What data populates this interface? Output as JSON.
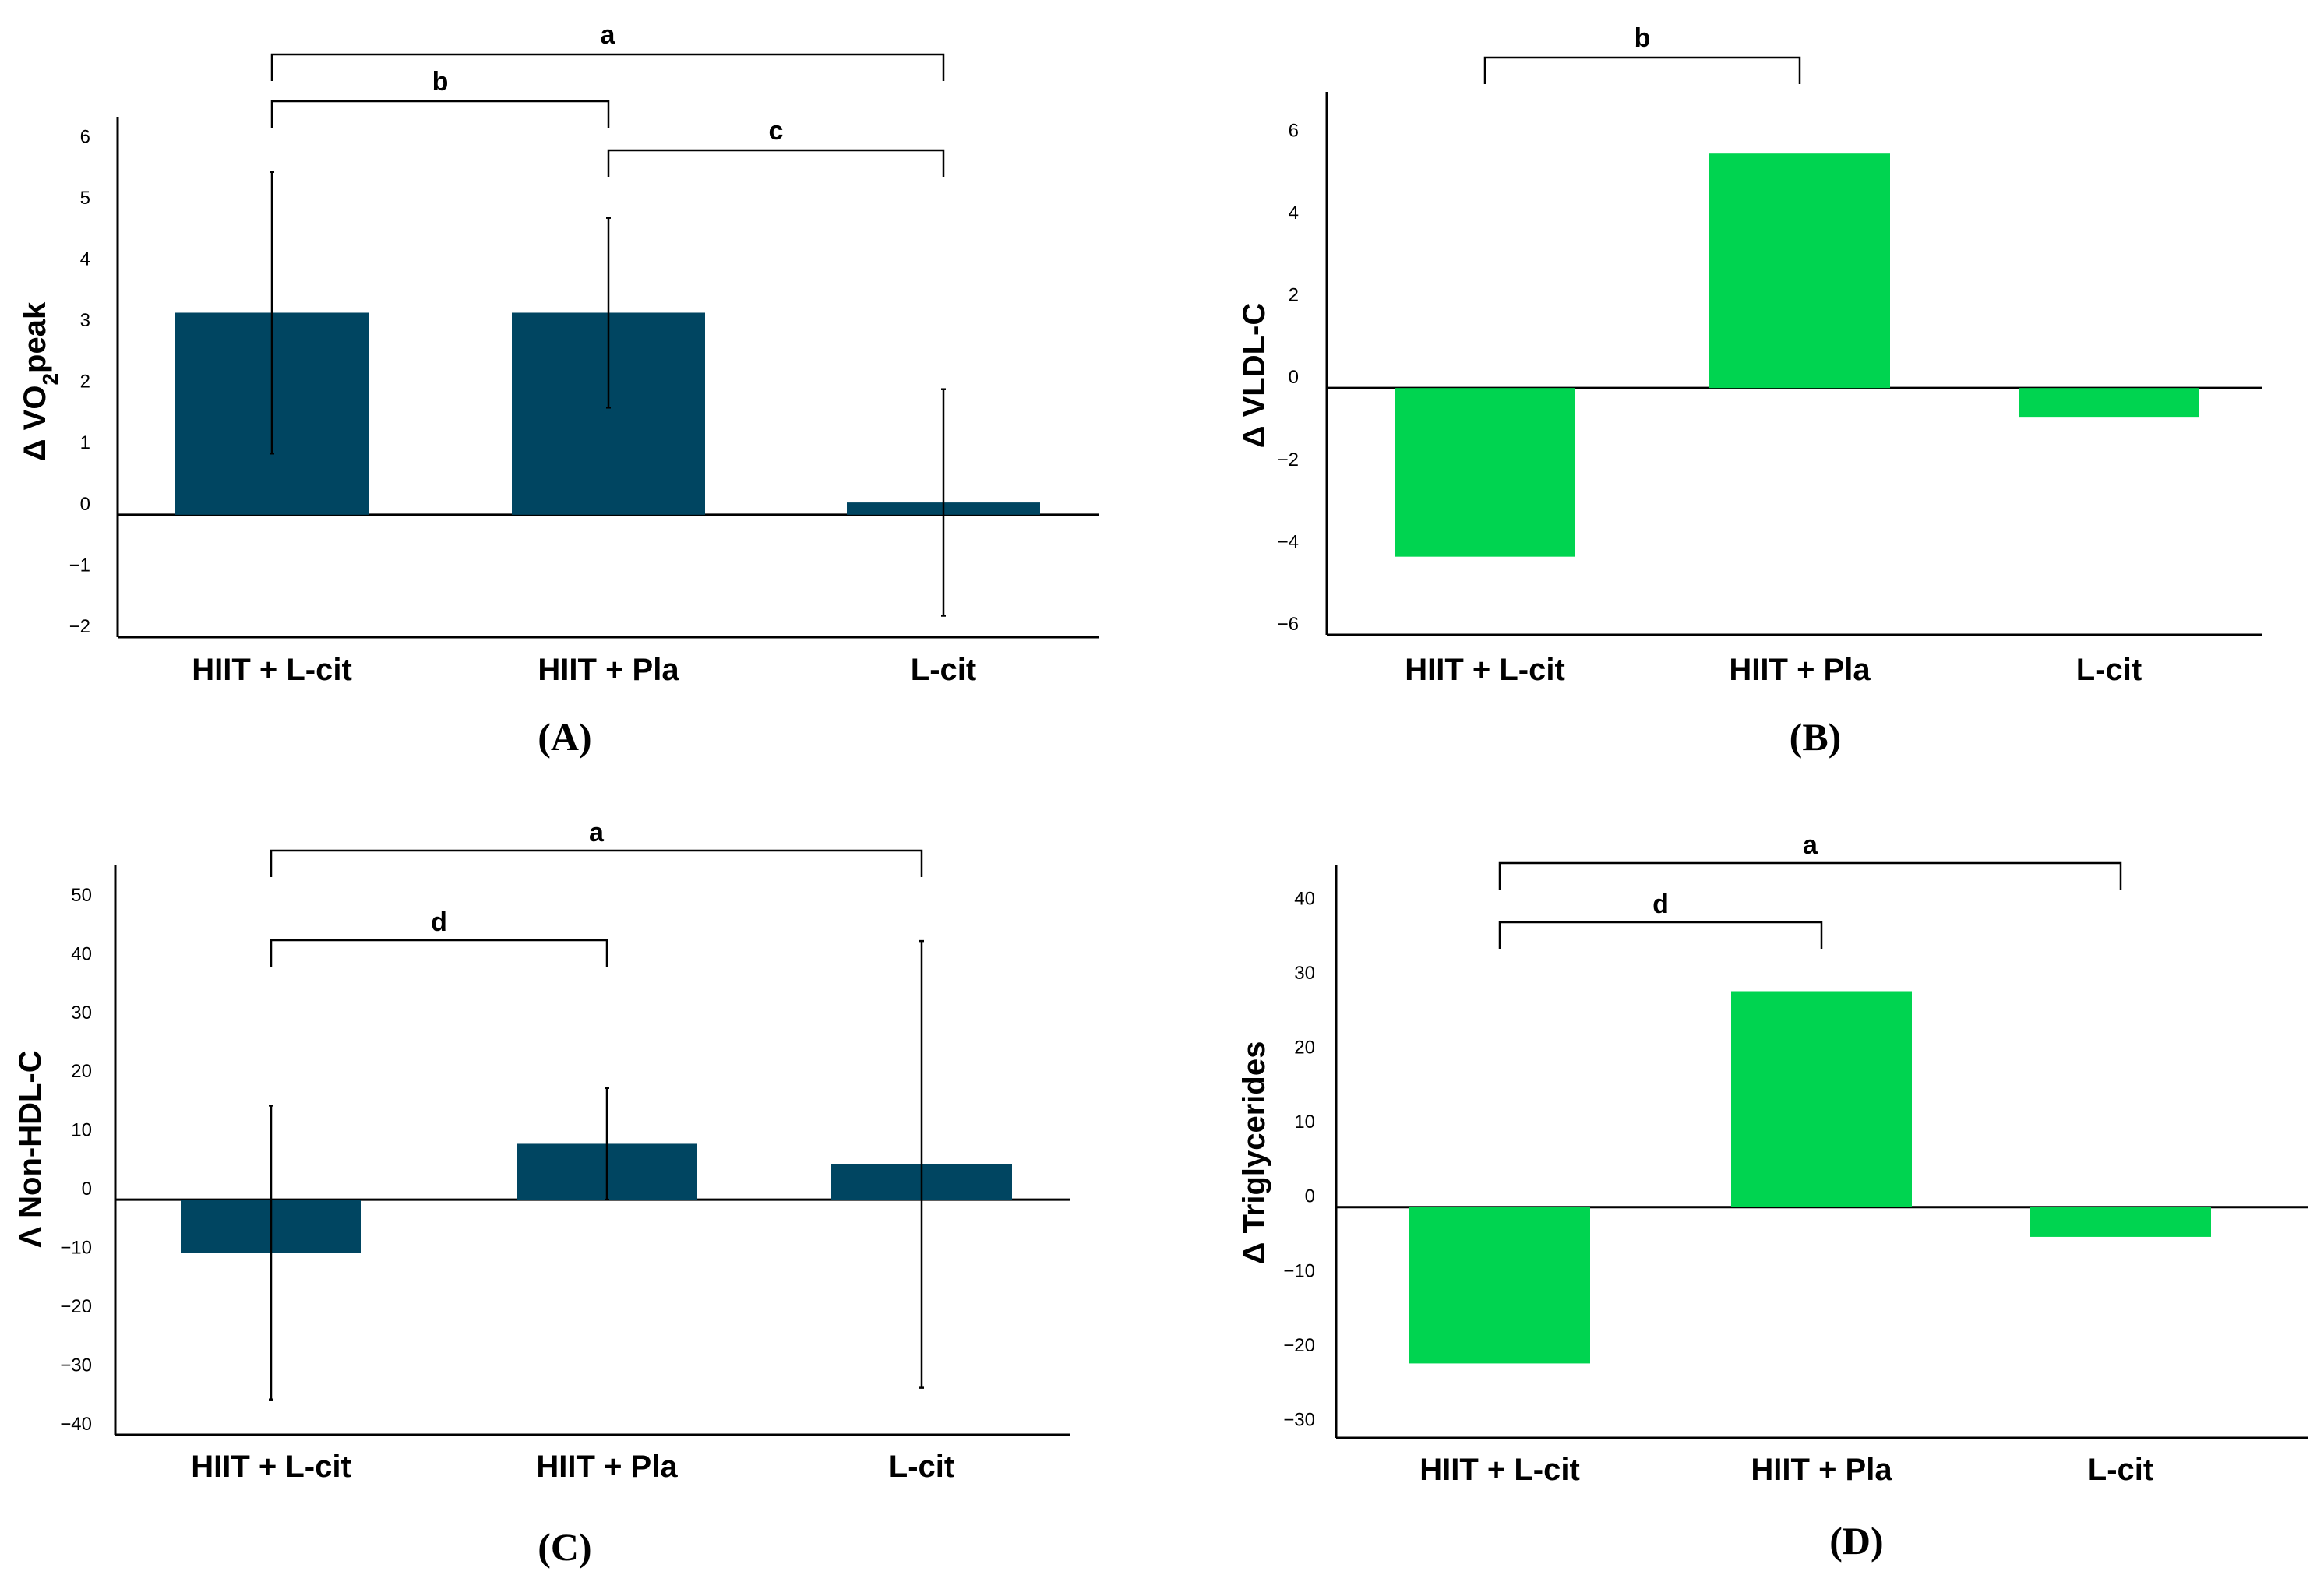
{
  "chart_data": [
    {
      "id": "A",
      "type": "bar",
      "panel_label": "(A)",
      "ylabel_parts": [
        "Δ VO",
        "2",
        "peak"
      ],
      "categories": [
        "HIIT + L-cit",
        "HIIT + Pla",
        "L-cit"
      ],
      "values": [
        3.3,
        3.3,
        0.2
      ],
      "errors": [
        2.3,
        1.55,
        1.85
      ],
      "yticks": [
        -2,
        -1,
        0,
        1,
        2,
        3,
        4,
        5,
        6
      ],
      "ytick_labels": [
        "−2",
        "−1",
        "0",
        "1",
        "2",
        "3",
        "4",
        "5",
        "6"
      ],
      "ylim": [
        -2.0,
        6.5
      ],
      "color": "#004561",
      "significance": [
        {
          "from": 0,
          "to": 2,
          "label": "a"
        },
        {
          "from": 0,
          "to": 1,
          "label": "b"
        },
        {
          "from": 1,
          "to": 2,
          "label": "c"
        }
      ]
    },
    {
      "id": "B",
      "type": "bar",
      "panel_label": "(B)",
      "ylabel_parts": [
        "Δ VLDL-C"
      ],
      "categories": [
        "HIIT + L-cit",
        "HIIT + Pla",
        "L-cit"
      ],
      "values": [
        -4.1,
        5.7,
        -0.7
      ],
      "errors": [],
      "yticks": [
        -6,
        -4,
        -2,
        0,
        2,
        4,
        6
      ],
      "ytick_labels": [
        "−6",
        "−4",
        "−2",
        "0",
        "2",
        "4",
        "6"
      ],
      "ylim": [
        -6.0,
        7.2
      ],
      "color": "#00d450",
      "significance": [
        {
          "from": 0,
          "to": 1,
          "label": "b"
        }
      ]
    },
    {
      "id": "C",
      "type": "bar",
      "panel_label": "(C)",
      "ylabel_parts": [
        "Λ Non-HDL-C"
      ],
      "categories": [
        "HIIT + L-cit",
        "HIIT + Pla",
        "L-cit"
      ],
      "values": [
        -9.0,
        9.5,
        6.0
      ],
      "errors": [
        25.0,
        9.5,
        38.0
      ],
      "yticks": [
        -40,
        -30,
        -20,
        -10,
        0,
        10,
        20,
        30,
        40,
        50
      ],
      "ytick_labels": [
        "−40",
        "−30",
        "−20",
        "−10",
        "0",
        "10",
        "20",
        "30",
        "40",
        "50"
      ],
      "ylim": [
        -40.0,
        57.0
      ],
      "color": "#004561",
      "significance": [
        {
          "from": 0,
          "to": 2,
          "label": "a"
        },
        {
          "from": 0,
          "to": 1,
          "label": "d"
        }
      ]
    },
    {
      "id": "D",
      "type": "bar",
      "panel_label": "(D)",
      "ylabel_parts": [
        "Δ Triglycerides"
      ],
      "categories": [
        "HIIT + L-cit",
        "HIIT + Pla",
        "L-cit"
      ],
      "values": [
        -21.0,
        29.0,
        -4.0
      ],
      "errors": [],
      "yticks": [
        -30,
        -20,
        -10,
        0,
        10,
        20,
        30,
        40
      ],
      "ytick_labels": [
        "−30",
        "−20",
        "−10",
        "0",
        "10",
        "20",
        "30",
        "40"
      ],
      "ylim": [
        -31.0,
        46.0
      ],
      "color": "#00d450",
      "significance": [
        {
          "from": 0,
          "to": 2,
          "label": "a"
        },
        {
          "from": 0,
          "to": 1,
          "label": "d"
        }
      ]
    }
  ]
}
